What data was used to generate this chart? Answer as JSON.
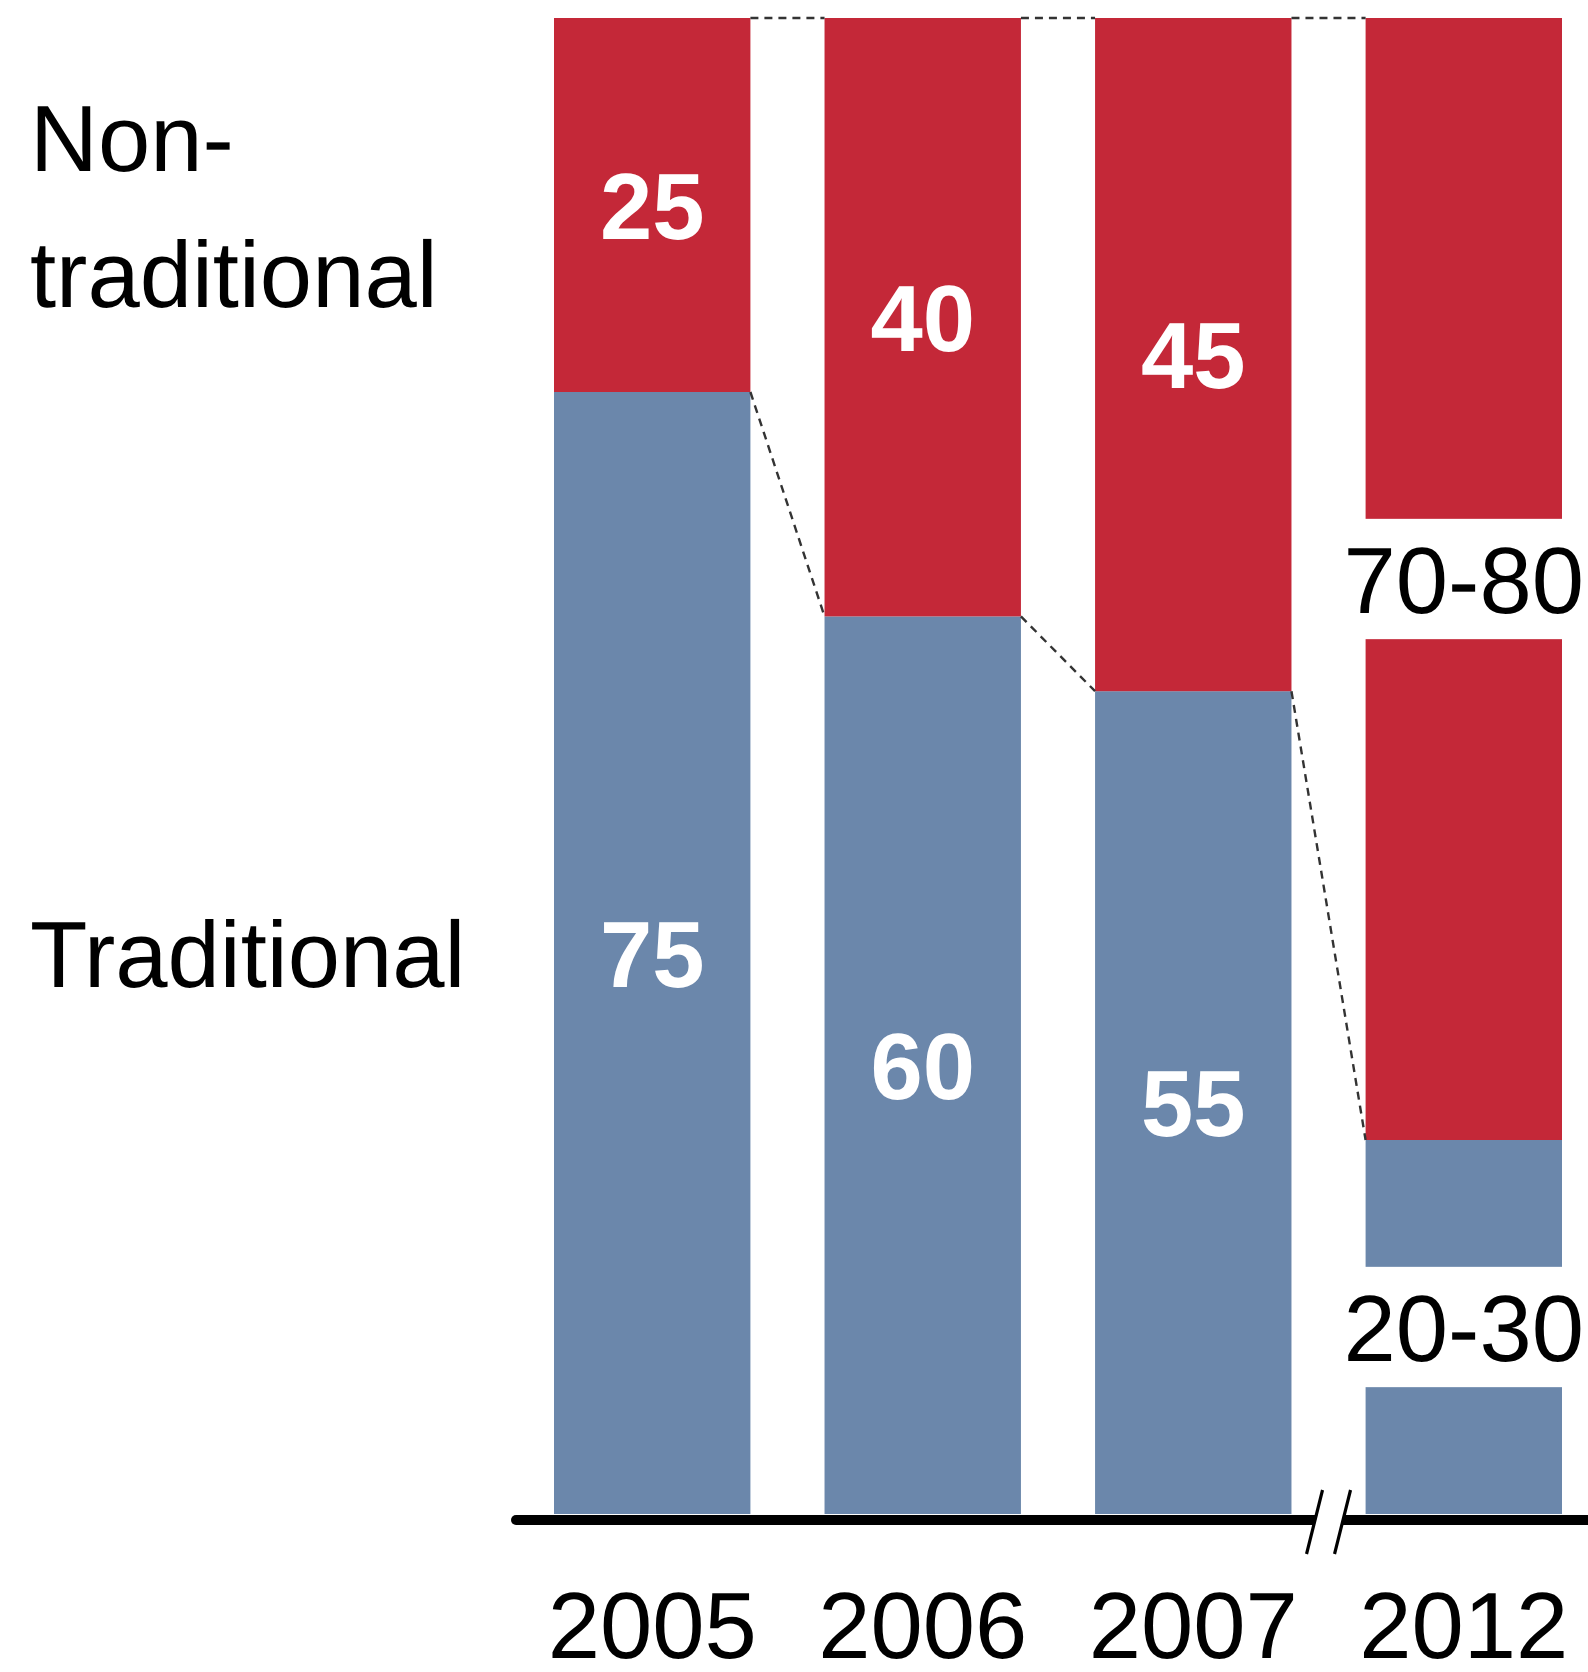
{
  "chart_data": {
    "type": "bar",
    "stacked": true,
    "categories": [
      "2005",
      "2006",
      "2007",
      "2012"
    ],
    "series": [
      {
        "name": "Traditional",
        "color": "#6b87ab",
        "values": [
          75,
          60,
          55,
          25
        ],
        "value_labels": [
          "75",
          "60",
          "55",
          "20-30"
        ]
      },
      {
        "name": "Non-traditional",
        "color": "#c42838",
        "values": [
          25,
          40,
          45,
          75
        ],
        "value_labels": [
          "25",
          "40",
          "45",
          "70-80"
        ]
      }
    ]
  }
}
